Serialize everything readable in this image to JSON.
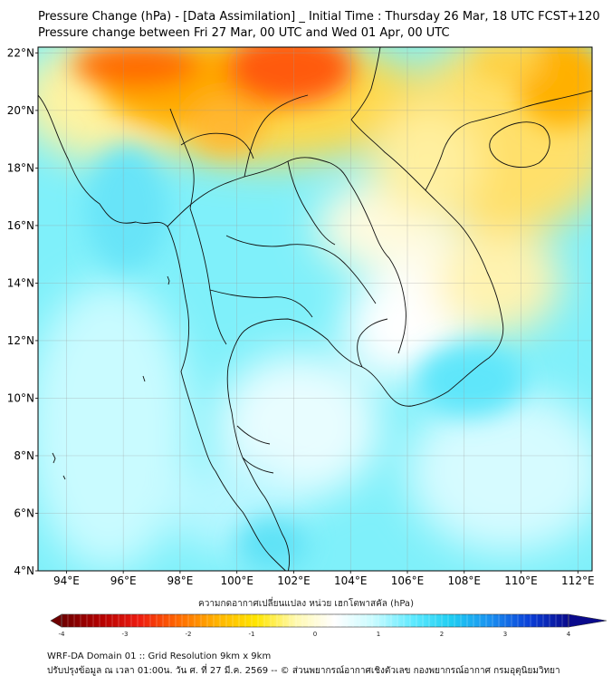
{
  "header": {
    "title": "Pressure Change (hPa) - [Data Assimilation] _ Initial Time : Thursday 26 Mar, 18 UTC FCST+120",
    "subtitle": "Pressure change between Fri 27 Mar, 00 UTC and Wed 01 Apr, 00 UTC"
  },
  "map": {
    "lat_labels": [
      "22°N",
      "20°N",
      "18°N",
      "16°N",
      "14°N",
      "12°N",
      "10°N",
      "8°N",
      "6°N",
      "4°N"
    ],
    "lon_labels": [
      "94°E",
      "96°E",
      "98°E",
      "100°E",
      "102°E",
      "104°E",
      "106°E",
      "108°E",
      "110°E",
      "112°E"
    ],
    "lat_values": [
      22,
      20,
      18,
      16,
      14,
      12,
      10,
      8,
      6,
      4
    ],
    "lon_values": [
      94,
      96,
      98,
      100,
      102,
      104,
      106,
      108,
      110,
      112
    ],
    "extent": {
      "lon_min": 93,
      "lon_max": 112.5,
      "lat_min": 4,
      "lat_max": 22.2
    },
    "colors": {
      "land_line": "#111111",
      "grid": "#9a9a9a"
    }
  },
  "colorbar": {
    "label": "ความกดอากาศเปลี่ยนแปลง หน่วย เฮกโตพาสคัล (hPa)",
    "ticks": [
      "-4",
      "-3",
      "-2",
      "-1",
      "0",
      "1",
      "2",
      "3",
      "4"
    ],
    "tick_values": [
      -4,
      -3,
      -2,
      -1,
      0,
      1,
      2,
      3,
      4
    ],
    "colors": [
      "#6e0000",
      "#b30000",
      "#ee1c10",
      "#ff6a00",
      "#ffb400",
      "#ffe600",
      "#fff9b0",
      "#ffffff",
      "#c8fbff",
      "#5feaff",
      "#1ecdf2",
      "#1a8ff0",
      "#0a3fd8",
      "#0a0a8c"
    ]
  },
  "footer": {
    "line1": "WRF-DA Domain 01 :: Grid Resolution 9km x 9km",
    "line2": "ปรับปรุงข้อมูล ณ เวลา 01:00น. วัน ศ. ที่ 27 มี.ค. 2569 -- © ส่วนพยากรณ์อากาศเชิงตัวเลข กองพยากรณ์อากาศ กรมอุตุนิยมวิทยา"
  }
}
